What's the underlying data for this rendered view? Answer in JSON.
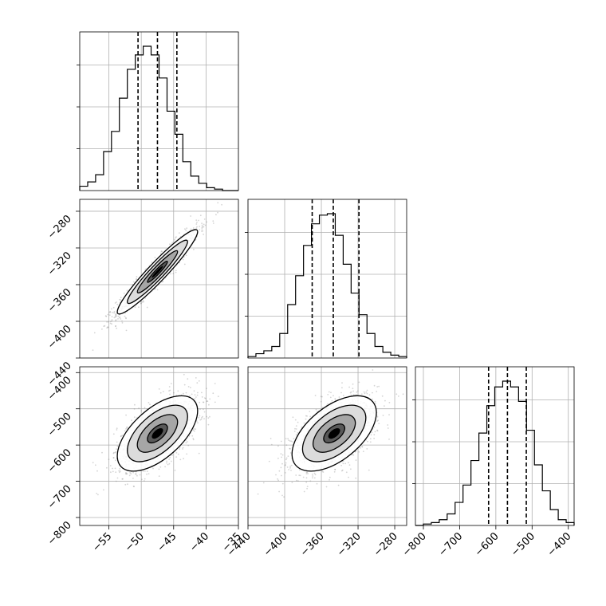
{
  "chart_data": {
    "type": "corner",
    "grid": true,
    "parameters": [
      {
        "ticks": [
          -55,
          -50,
          -45,
          -40,
          -35
        ],
        "tick_labels": [
          "−55",
          "−50",
          "−45",
          "−40",
          "−35"
        ],
        "range": [
          -59.5,
          -35
        ],
        "quantiles": [
          -50.5,
          -47.5,
          -44.5
        ],
        "hist_bins": [
          -59.5,
          -58.27,
          -57.05,
          -55.82,
          -54.6,
          -53.38,
          -52.15,
          -50.93,
          -49.7,
          -48.48,
          -47.25,
          -46.02,
          -44.8,
          -43.58,
          -42.35,
          -41.13,
          -39.9,
          -38.68,
          -37.45,
          -36.23,
          -35.0
        ],
        "hist_counts": [
          0.03,
          0.06,
          0.11,
          0.27,
          0.41,
          0.64,
          0.84,
          0.94,
          1.0,
          0.94,
          0.78,
          0.55,
          0.39,
          0.2,
          0.1,
          0.05,
          0.02,
          0.01,
          0.0,
          0.0
        ]
      },
      {
        "ticks": [
          -440,
          -400,
          -360,
          -320,
          -280
        ],
        "tick_labels": [
          "−440",
          "−400",
          "−360",
          "−320",
          "−280"
        ],
        "range": [
          -440,
          -267
        ],
        "quantiles": [
          -370,
          -347,
          -319
        ],
        "hist_bins": [
          -440.0,
          -431.35,
          -422.7,
          -414.05,
          -405.4,
          -396.75,
          -388.1,
          -379.45,
          -370.8,
          -362.15,
          -353.5,
          -344.85,
          -336.2,
          -327.55,
          -318.9,
          -310.25,
          -301.6,
          -292.95,
          -284.3,
          -275.65,
          -267.0
        ],
        "hist_counts": [
          0.01,
          0.03,
          0.05,
          0.08,
          0.17,
          0.37,
          0.57,
          0.78,
          0.93,
          0.99,
          1.0,
          0.85,
          0.65,
          0.45,
          0.3,
          0.17,
          0.08,
          0.04,
          0.02,
          0.01
        ]
      },
      {
        "ticks": [
          -800,
          -700,
          -600,
          -500,
          -400
        ],
        "tick_labels": [
          "−800",
          "−700",
          "−600",
          "−500",
          "−400"
        ],
        "range": [
          -822,
          -384
        ],
        "quantiles": [
          -620,
          -568,
          -516
        ],
        "hist_bins": [
          -822.0,
          -800.1,
          -778.2,
          -756.3,
          -734.4,
          -712.5,
          -690.6,
          -668.7,
          -646.8,
          -624.9,
          -603.0,
          -581.1,
          -559.2,
          -537.3,
          -515.4,
          -493.5,
          -471.6,
          -449.7,
          -427.8,
          -405.9,
          -384.0
        ],
        "hist_counts": [
          0.0,
          0.01,
          0.02,
          0.04,
          0.08,
          0.16,
          0.28,
          0.45,
          0.64,
          0.83,
          0.96,
          1.0,
          0.96,
          0.86,
          0.66,
          0.42,
          0.24,
          0.11,
          0.04,
          0.02
        ]
      }
    ],
    "pairs": [
      {
        "x_param": 0,
        "y_param": 1,
        "mean": [
          -47.5,
          -346
        ],
        "sd": [
          3.1,
          23
        ],
        "corr": 0.95
      },
      {
        "x_param": 0,
        "y_param": 2,
        "mean": [
          -47.5,
          -568
        ],
        "sd": [
          3.1,
          52
        ],
        "corr": 0.6
      },
      {
        "x_param": 1,
        "y_param": 2,
        "mean": [
          -346,
          -568
        ],
        "sd": [
          23,
          52
        ],
        "corr": 0.55
      }
    ],
    "contour_levels_sigma": [
      0.5,
      1.0,
      1.5,
      2.0
    ]
  }
}
